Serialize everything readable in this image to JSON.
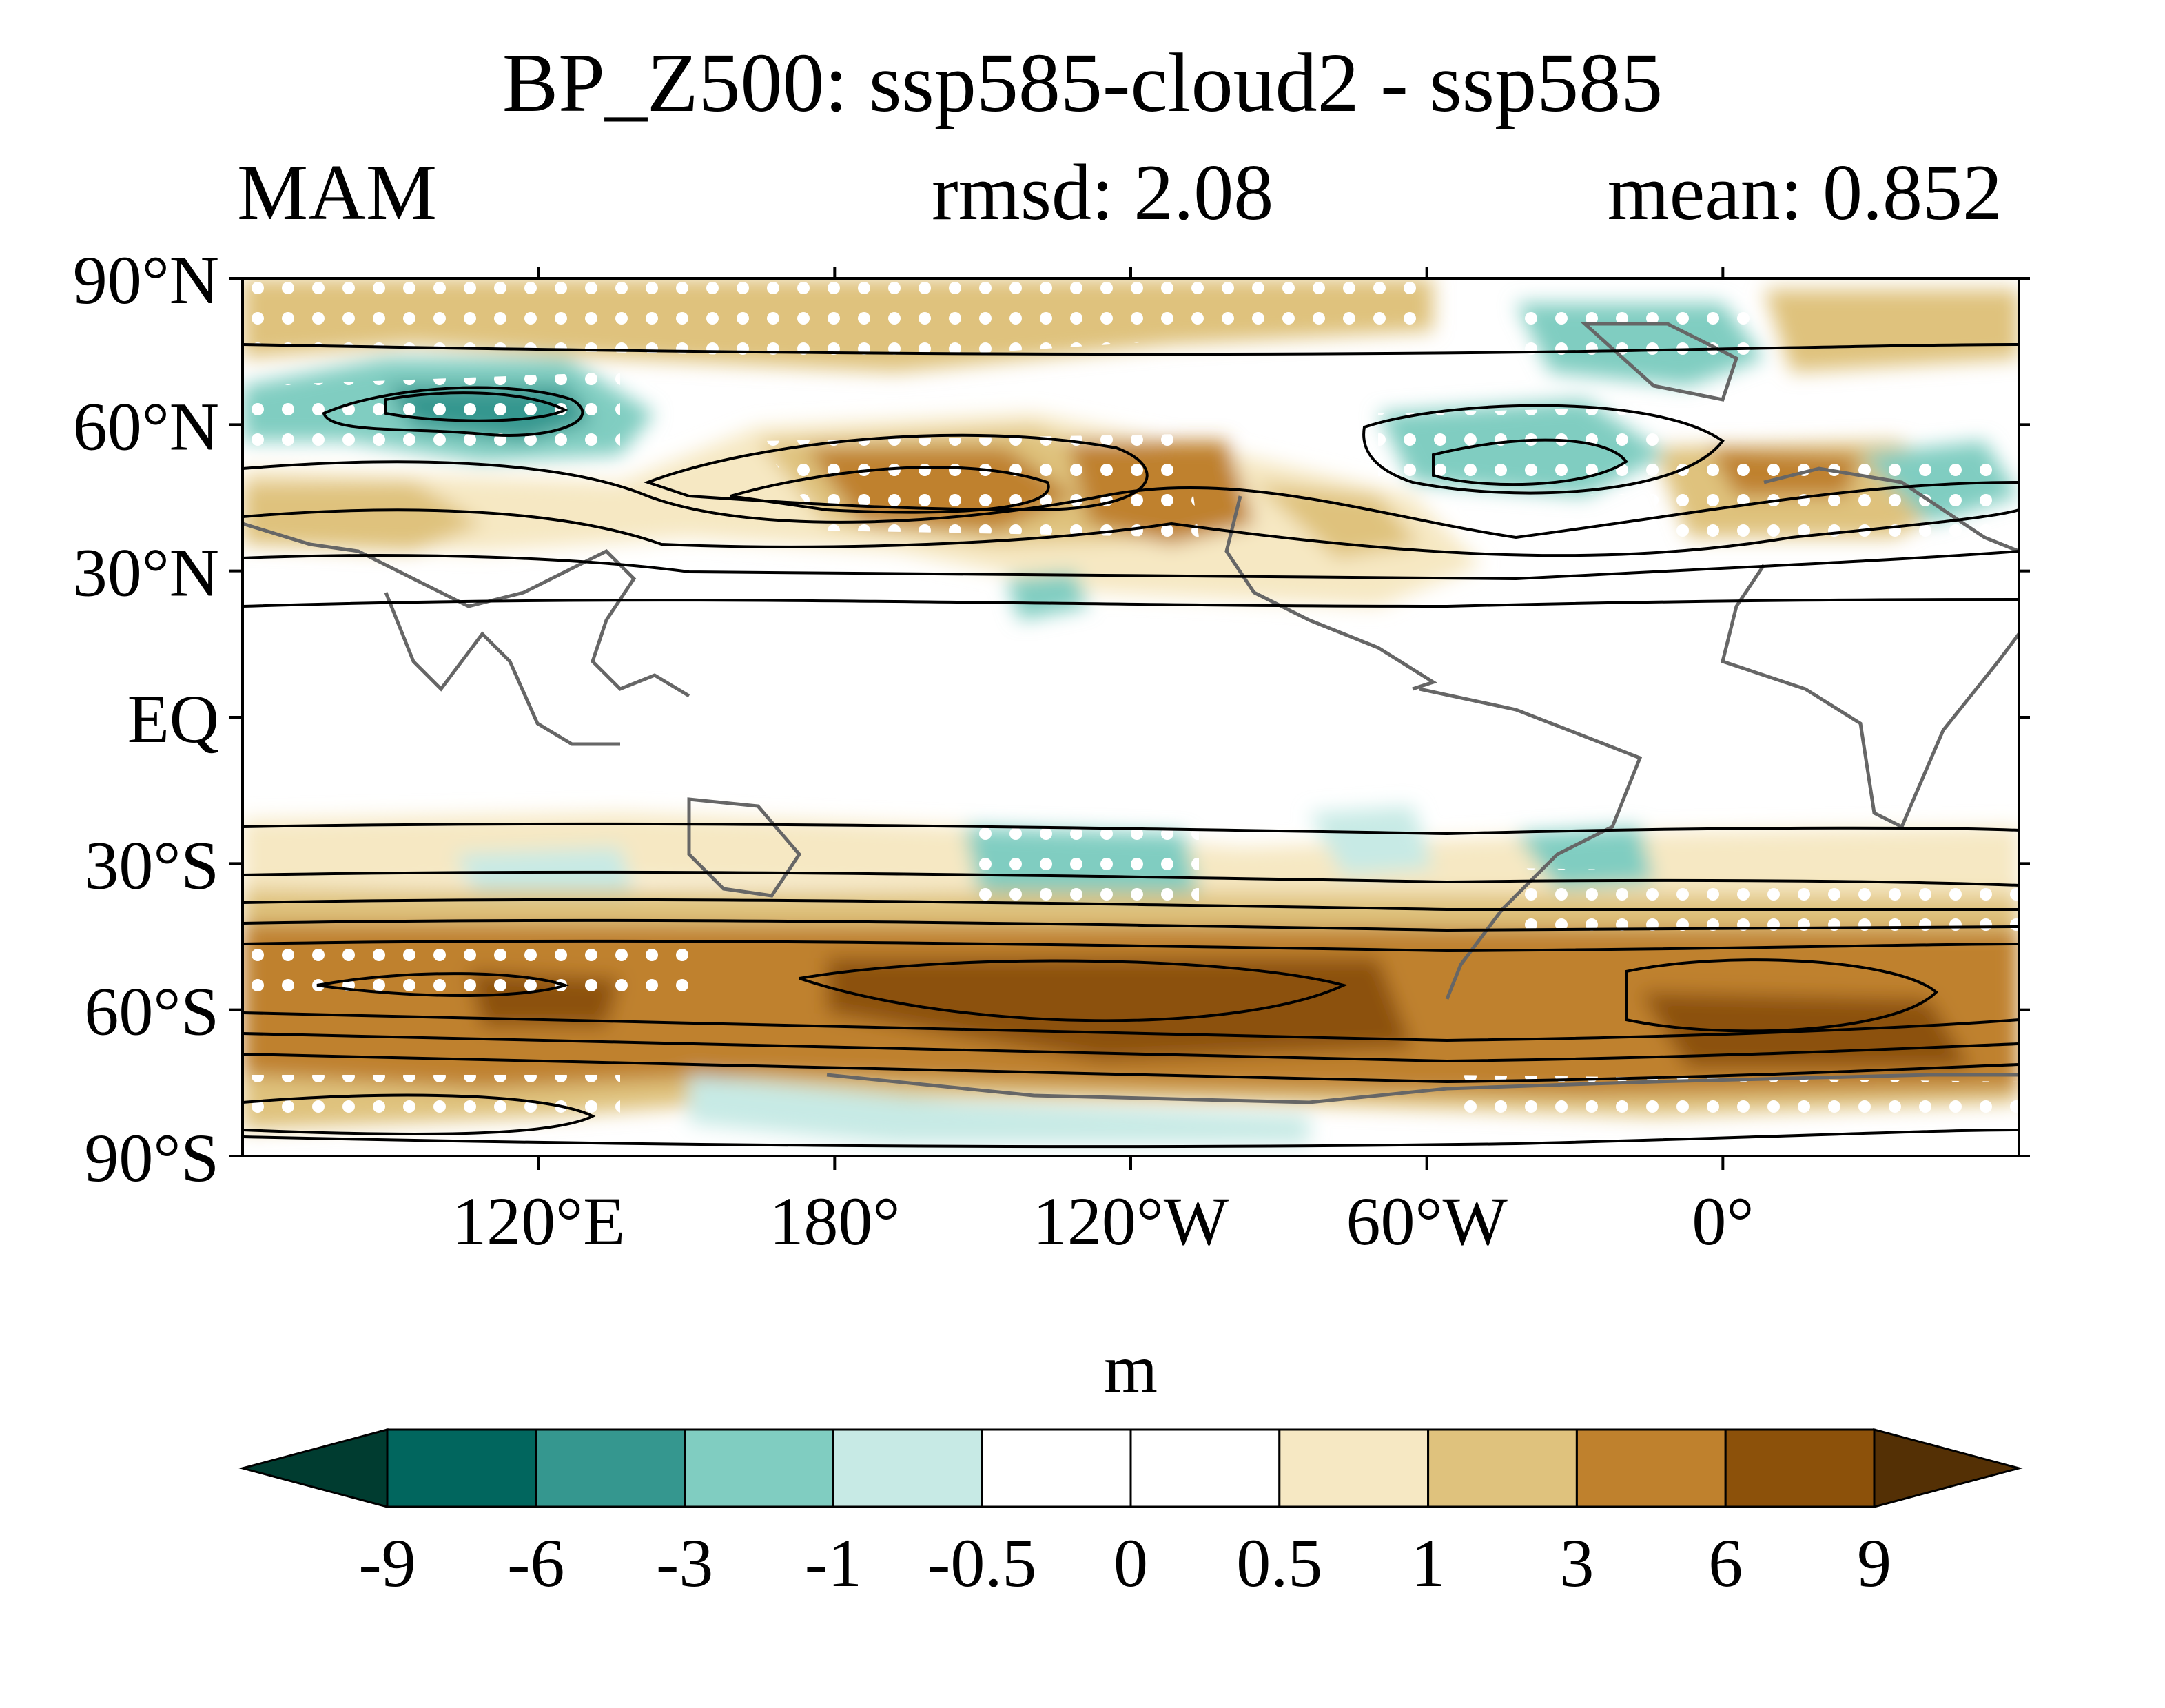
{
  "title": "BP_Z500: ssp585-cloud2 - ssp585",
  "subtitle_left": "MAM",
  "subtitle_center": "rmsd: 2.08",
  "subtitle_right": "mean: 0.852",
  "map": {
    "projection": "cylindrical-equidistant",
    "lon_range": [
      60,
      420
    ],
    "lat_range": [
      -90,
      90
    ],
    "lat_ticks": [
      {
        "value": 90,
        "label": "90°N"
      },
      {
        "value": 60,
        "label": "60°N"
      },
      {
        "value": 30,
        "label": "30°N"
      },
      {
        "value": 0,
        "label": "EQ"
      },
      {
        "value": -30,
        "label": "30°S"
      },
      {
        "value": -60,
        "label": "60°S"
      },
      {
        "value": -90,
        "label": "90°S"
      }
    ],
    "lon_ticks": [
      {
        "value": 120,
        "label": "120°E"
      },
      {
        "value": 180,
        "label": "180°"
      },
      {
        "value": 240,
        "label": "120°W"
      },
      {
        "value": 300,
        "label": "60°W"
      },
      {
        "value": 360,
        "label": "0°"
      }
    ],
    "features": [
      "filled anomaly contours",
      "black climatology contour lines",
      "white significance dots",
      "gray coastlines"
    ]
  },
  "colorbar": {
    "unit": "m",
    "levels": [
      "-9",
      "-6",
      "-3",
      "-1",
      "-0.5",
      "0",
      "0.5",
      "1",
      "3",
      "6",
      "9"
    ],
    "colors": [
      "#01665e",
      "#35978f",
      "#80cdc1",
      "#c7eae5",
      "#ffffff",
      "#ffffff",
      "#f6e8c3",
      "#dfc27d",
      "#bf812d",
      "#8c510a"
    ],
    "under_color": "#003c30",
    "over_color": "#543005"
  }
}
